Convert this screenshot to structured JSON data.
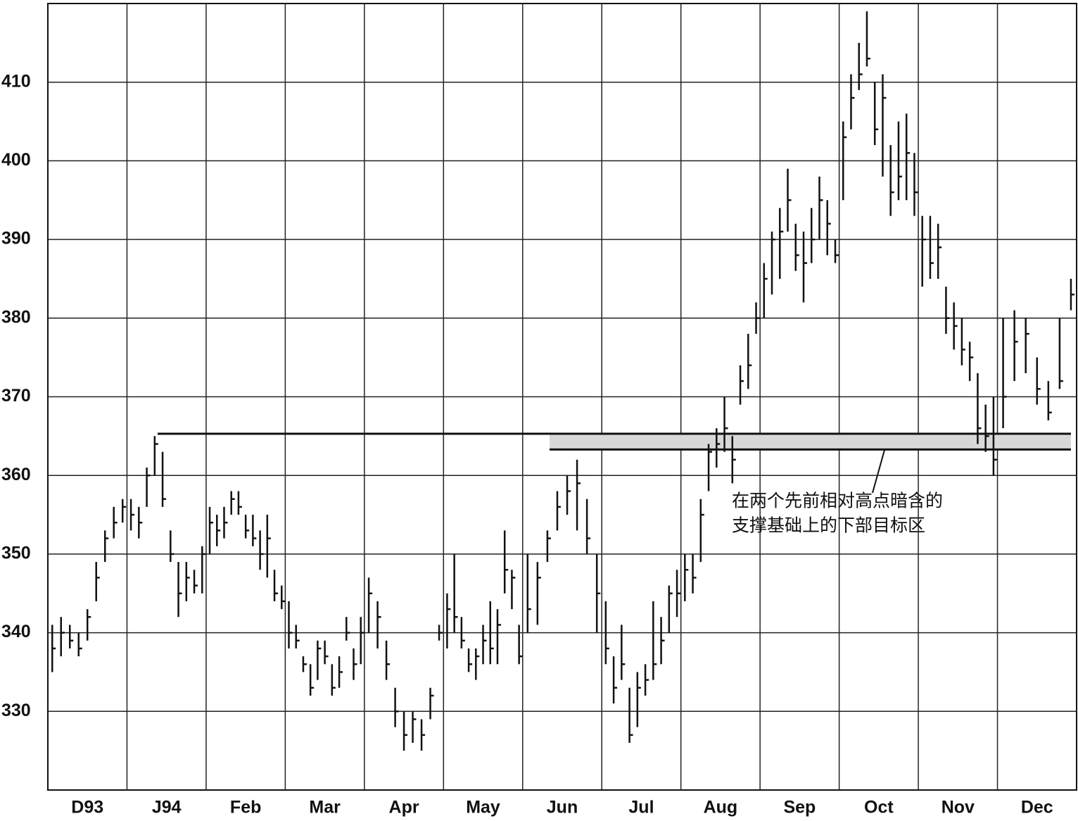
{
  "chart_data": {
    "type": "ohlc",
    "categories": [
      "D93",
      "J94",
      "Feb",
      "Mar",
      "Apr",
      "May",
      "Jun",
      "Jul",
      "Aug",
      "Sep",
      "Oct",
      "Nov",
      "Dec"
    ],
    "high": [
      [
        341,
        342,
        341,
        340,
        343,
        349,
        353,
        356,
        357
      ],
      [
        357,
        356,
        361,
        365,
        363,
        353,
        349,
        349,
        348,
        351
      ],
      [
        356,
        355,
        356,
        358,
        358,
        355,
        355,
        353,
        355,
        348,
        346
      ],
      [
        344,
        341,
        337,
        336,
        339,
        339,
        336,
        337,
        342,
        338,
        342
      ],
      [
        347,
        344,
        339,
        333,
        330,
        330,
        329,
        333,
        341
      ],
      [
        345,
        350,
        342,
        338,
        338,
        341,
        344,
        343,
        353,
        348,
        341
      ],
      [
        350,
        349,
        353,
        358,
        360,
        362,
        357,
        350
      ],
      [
        344,
        337,
        341,
        333,
        335,
        336,
        344,
        342,
        346,
        348
      ],
      [
        350,
        350,
        357,
        364,
        366,
        370,
        365,
        374,
        378,
        382
      ],
      [
        387,
        391,
        394,
        399,
        392,
        391,
        394,
        398,
        395,
        390
      ],
      [
        405,
        411,
        415,
        419,
        410,
        411,
        402,
        405,
        406,
        401
      ],
      [
        393,
        393,
        392,
        384,
        382,
        380,
        377,
        373,
        369,
        370
      ],
      [
        380,
        381,
        380,
        375,
        372,
        380,
        385
      ]
    ],
    "low": [
      [
        335,
        337,
        338,
        337,
        339,
        344,
        349,
        352,
        354
      ],
      [
        353,
        352,
        356,
        360,
        356,
        349,
        342,
        344,
        345,
        345
      ],
      [
        350,
        351,
        352,
        355,
        355,
        352,
        351,
        348,
        347,
        344,
        343
      ],
      [
        338,
        338,
        335,
        332,
        334,
        336,
        332,
        333,
        339,
        334,
        336
      ],
      [
        340,
        338,
        334,
        328,
        325,
        326,
        325,
        329,
        339
      ],
      [
        338,
        340,
        338,
        335,
        334,
        336,
        336,
        336,
        345,
        343,
        336
      ],
      [
        340,
        341,
        349,
        353,
        355,
        353,
        350,
        340
      ],
      [
        336,
        331,
        334,
        326,
        328,
        332,
        334,
        336,
        340,
        342
      ],
      [
        344,
        345,
        349,
        358,
        361,
        363,
        359,
        369,
        371,
        378
      ],
      [
        380,
        383,
        385,
        391,
        386,
        382,
        387,
        390,
        388,
        387
      ],
      [
        395,
        404,
        409,
        412,
        402,
        398,
        393,
        395,
        395,
        393
      ],
      [
        384,
        385,
        385,
        378,
        376,
        374,
        372,
        364,
        363,
        360
      ],
      [
        366,
        372,
        373,
        369,
        367,
        371,
        381
      ]
    ],
    "close": [
      [
        338,
        340,
        339,
        338,
        342,
        347,
        352,
        354,
        356
      ],
      [
        355,
        354,
        360,
        364,
        357,
        350,
        345,
        347,
        346,
        350
      ],
      [
        354,
        353,
        354,
        357,
        356,
        353,
        352,
        350,
        352,
        345,
        344
      ],
      [
        340,
        339,
        336,
        333,
        338,
        337,
        333,
        335,
        340,
        336,
        340
      ],
      [
        345,
        342,
        336,
        330,
        327,
        329,
        327,
        332,
        340
      ],
      [
        343,
        342,
        339,
        336,
        337,
        339,
        338,
        341,
        348,
        347,
        337
      ],
      [
        343,
        347,
        352,
        356,
        358,
        359,
        352,
        345
      ],
      [
        338,
        333,
        336,
        327,
        333,
        334,
        336,
        339,
        345,
        345
      ],
      [
        348,
        347,
        355,
        363,
        364,
        366,
        362,
        372,
        374,
        380
      ],
      [
        385,
        390,
        391,
        395,
        388,
        387,
        390,
        395,
        392,
        388
      ],
      [
        403,
        408,
        411,
        413,
        404,
        408,
        396,
        398,
        401,
        396
      ],
      [
        390,
        387,
        389,
        380,
        379,
        376,
        375,
        366,
        365,
        362
      ],
      [
        370,
        377,
        378,
        371,
        368,
        372,
        383
      ]
    ],
    "reference_lines": [
      365.3,
      363.3
    ],
    "annotation": [
      "在两个先前相对高点暗含的",
      "支撑基础上的下部目标区"
    ],
    "ylim": [
      320,
      420
    ],
    "yticks": [
      330,
      340,
      350,
      360,
      370,
      380,
      390,
      400,
      410
    ],
    "grid": true,
    "color": "#111111"
  }
}
